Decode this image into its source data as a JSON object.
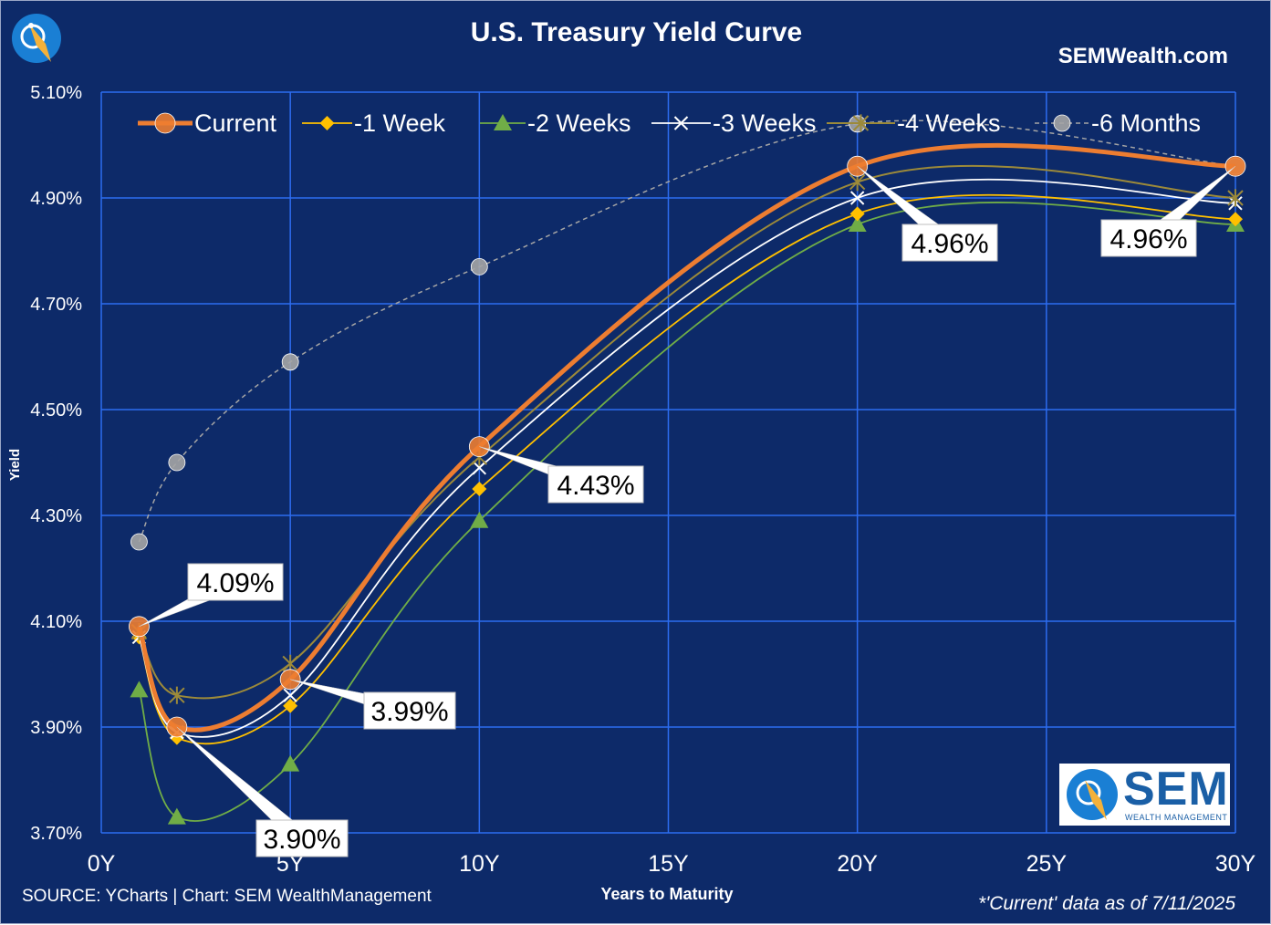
{
  "header": {
    "title": "U.S. Treasury Yield Curve",
    "brand": "SEMWealth.com"
  },
  "footer": {
    "source": "SOURCE: YCharts | Chart: SEM WealthManagement",
    "as_of": "*'Current' data as of 7/11/2025"
  },
  "logo": {
    "name": "SEM",
    "subtitle": "WEALTH MANAGEMENT"
  },
  "colors": {
    "background": "#0d2a69",
    "grid": "#2d6cf0",
    "current": "#ed7d31",
    "week1": "#ffc000",
    "week2": "#70ad47",
    "week3": "#ffffff",
    "week4": "#9c8a3a",
    "month6": "#a5a5a5",
    "callout_bg": "#ffffff"
  },
  "chart_data": {
    "type": "line",
    "title": "U.S. Treasury Yield Curve",
    "xlabel": "Years to Maturity",
    "ylabel": "Yield",
    "xlim": [
      0,
      30
    ],
    "ylim": [
      3.7,
      5.1
    ],
    "x_ticks": [
      "0Y",
      "5Y",
      "10Y",
      "15Y",
      "20Y",
      "25Y",
      "30Y"
    ],
    "y_ticks": [
      "3.70%",
      "3.90%",
      "4.10%",
      "4.30%",
      "4.50%",
      "4.70%",
      "4.90%",
      "5.10%"
    ],
    "grid": true,
    "legend_position": "top",
    "x": [
      1,
      2,
      5,
      10,
      20,
      30
    ],
    "series": [
      {
        "name": "Current",
        "values": [
          4.09,
          3.9,
          3.99,
          4.43,
          4.96,
          4.96
        ]
      },
      {
        "name": "-1 Week",
        "values": [
          4.07,
          3.88,
          3.94,
          4.35,
          4.87,
          4.86
        ]
      },
      {
        "name": "-2 Weeks",
        "values": [
          3.97,
          3.73,
          3.83,
          4.29,
          4.85,
          4.85
        ]
      },
      {
        "name": "-3 Weeks",
        "values": [
          4.07,
          3.89,
          3.96,
          4.39,
          4.9,
          4.89
        ]
      },
      {
        "name": "-4 Weeks",
        "values": [
          4.08,
          3.96,
          4.02,
          4.41,
          4.93,
          4.9
        ]
      },
      {
        "name": "-6 Months",
        "values": [
          4.25,
          4.4,
          4.59,
          4.77,
          5.04,
          4.96
        ]
      }
    ],
    "annotations": [
      {
        "text": "4.09%",
        "x": 1,
        "y": 4.09
      },
      {
        "text": "3.90%",
        "x": 2,
        "y": 3.9
      },
      {
        "text": "3.99%",
        "x": 5,
        "y": 3.99
      },
      {
        "text": "4.43%",
        "x": 10,
        "y": 4.43
      },
      {
        "text": "4.96%",
        "x": 20,
        "y": 4.96
      },
      {
        "text": "4.96%",
        "x": 30,
        "y": 4.96
      }
    ]
  }
}
